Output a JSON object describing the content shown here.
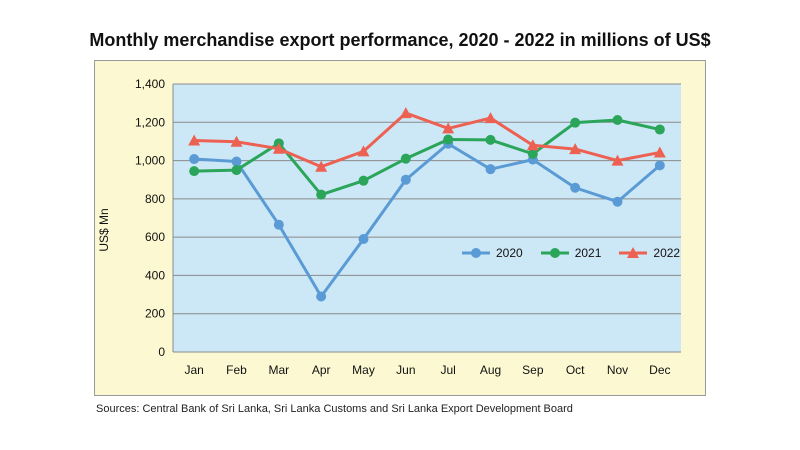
{
  "title": "Monthly merchandise export performance, 2020 - 2022 in millions of US$",
  "source": "Sources: Central Bank of Sri Lanka, Sri Lanka Customs and Sri Lanka Export Development Board",
  "chart_data": {
    "type": "line",
    "title": "Monthly merchandise export performance, 2020 - 2022 in millions of US$",
    "xlabel": "",
    "ylabel": "US$ Mn",
    "categories": [
      "Jan",
      "Feb",
      "Mar",
      "Apr",
      "May",
      "Jun",
      "Jul",
      "Aug",
      "Sep",
      "Oct",
      "Nov",
      "Dec"
    ],
    "ylim": [
      0,
      1400
    ],
    "yticks": [
      0,
      200,
      400,
      600,
      800,
      1000,
      1200,
      1400
    ],
    "ytick_labels": [
      "0",
      "200",
      "400",
      "600",
      "800",
      "1,000",
      "1,200",
      "1,400"
    ],
    "grid": true,
    "legend_position": "right-middle",
    "series": [
      {
        "name": "2020",
        "color": "#5b9bd5",
        "marker": "circle",
        "values": [
          1008,
          995,
          665,
          290,
          590,
          900,
          1088,
          955,
          1005,
          858,
          785,
          975
        ]
      },
      {
        "name": "2021",
        "color": "#2aa55a",
        "marker": "circle",
        "values": [
          945,
          950,
          1090,
          822,
          895,
          1010,
          1110,
          1108,
          1035,
          1198,
          1212,
          1162
        ]
      },
      {
        "name": "2022",
        "color": "#ed6152",
        "marker": "triangle",
        "values": [
          1105,
          1098,
          1062,
          968,
          1048,
          1248,
          1168,
          1222,
          1080,
          1060,
          1000,
          1042
        ]
      }
    ]
  }
}
